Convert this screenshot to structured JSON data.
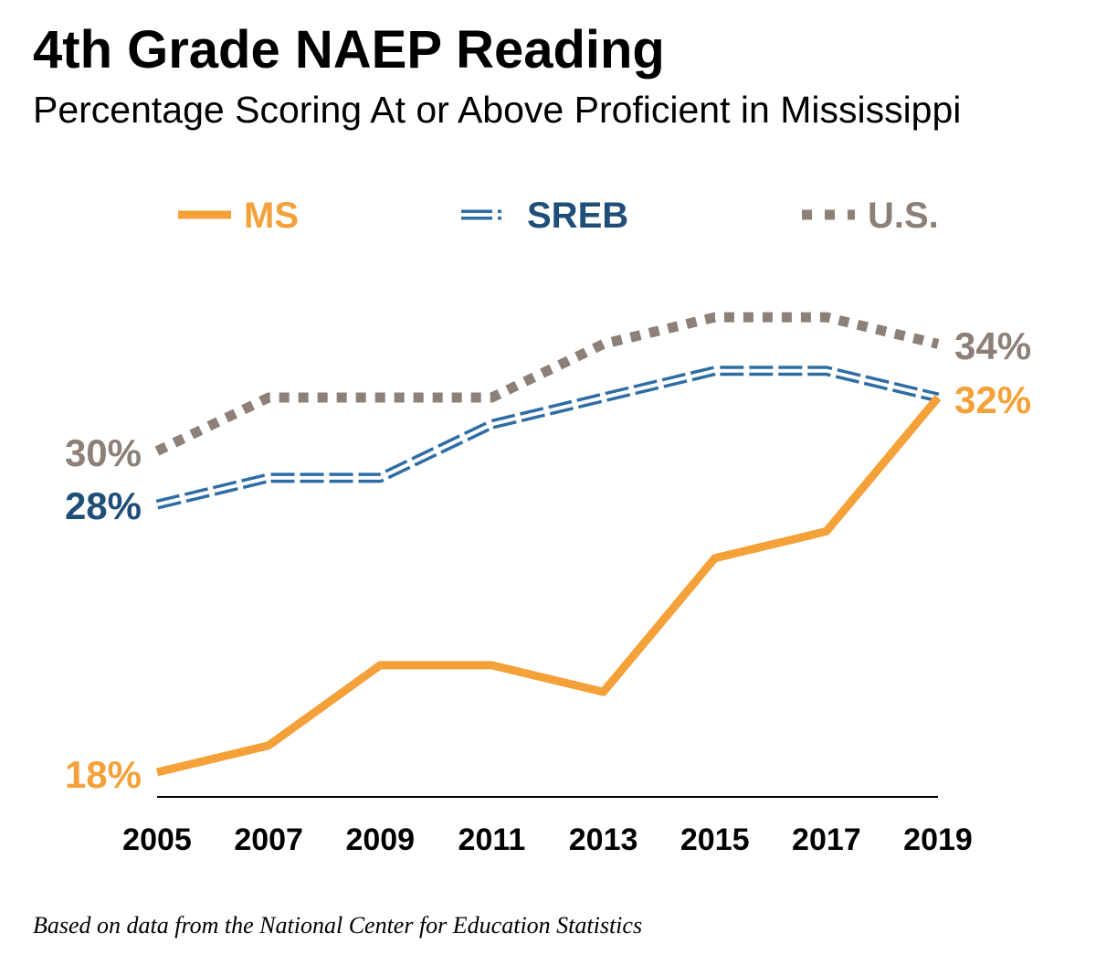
{
  "title": "4th Grade NAEP Reading",
  "subtitle": "Percentage Scoring At or Above Proficient in Mississippi",
  "source": "Based on data from the National Center for Education Statistics",
  "chart_data": {
    "type": "line",
    "title": "4th Grade NAEP Reading",
    "subtitle": "Percentage Scoring At or Above Proficient in Mississippi",
    "xlabel": "",
    "ylabel": "",
    "x": [
      "2005",
      "2007",
      "2009",
      "2011",
      "2013",
      "2015",
      "2017",
      "2019"
    ],
    "ylim": [
      16,
      36
    ],
    "grid": false,
    "legend": "top",
    "series": [
      {
        "name": "MS",
        "color": "#F5A13A",
        "style": "solid",
        "values": [
          18,
          19,
          22,
          22,
          21,
          26,
          27,
          32
        ],
        "start_label": "18%",
        "end_label": "32%"
      },
      {
        "name": "SREB",
        "color": "#2E6DA4",
        "label_color": "#1F4E79",
        "style": "double",
        "values": [
          28,
          29,
          29,
          31,
          32,
          33,
          33,
          32
        ],
        "start_label": "28%",
        "end_label": ""
      },
      {
        "name": "U.S.",
        "color": "#8C8078",
        "style": "dotted",
        "values": [
          30,
          32,
          32,
          32,
          34,
          35,
          35,
          34
        ],
        "start_label": "30%",
        "end_label": "34%"
      }
    ]
  }
}
